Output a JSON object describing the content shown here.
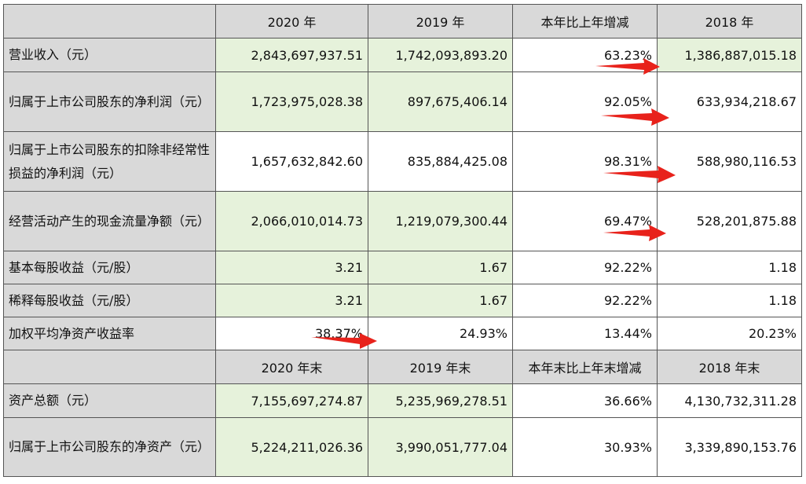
{
  "header1": [
    "2020 年",
    "2019 年",
    "本年比上年增减",
    "2018 年"
  ],
  "header2": [
    "2020 年末",
    "2019 年末",
    "本年末比上年末增减",
    "2018 年末"
  ],
  "rows": [
    {
      "label": "营业收入（元）",
      "v2020": "2,843,697,937.51",
      "v2019": "1,742,093,893.20",
      "change": "63.23%",
      "v2018": "1,386,887,015.18"
    },
    {
      "label": "归属于上市公司股东的净利润（元）",
      "v2020": "1,723,975,028.38",
      "v2019": "897,675,406.14",
      "change": "92.05%",
      "v2018": "633,934,218.67"
    },
    {
      "label": "归属于上市公司股东的扣除非经常性损益的净利润（元）",
      "v2020": "1,657,632,842.60",
      "v2019": "835,884,425.08",
      "change": "98.31%",
      "v2018": "588,980,116.53"
    },
    {
      "label": "经营活动产生的现金流量净额（元）",
      "v2020": "2,066,010,014.73",
      "v2019": "1,219,079,300.44",
      "change": "69.47%",
      "v2018": "528,201,875.88"
    },
    {
      "label": "基本每股收益（元/股）",
      "v2020": "3.21",
      "v2019": "1.67",
      "change": "92.22%",
      "v2018": "1.18"
    },
    {
      "label": "稀释每股收益（元/股）",
      "v2020": "3.21",
      "v2019": "1.67",
      "change": "92.22%",
      "v2018": "1.18"
    },
    {
      "label": "加权平均净资产收益率",
      "v2020": "38.37%",
      "v2019": "24.93%",
      "change": "13.44%",
      "v2018": "20.23%"
    }
  ],
  "rows2": [
    {
      "label": "资产总额（元）",
      "v2020": "7,155,697,274.87",
      "v2019": "5,235,969,278.51",
      "change": "36.66%",
      "v2018": "4,130,732,311.28"
    },
    {
      "label": "归属于上市公司股东的净资产（元）",
      "v2020": "5,224,211,026.36",
      "v2019": "3,990,051,777.04",
      "change": "30.93%",
      "v2018": "3,339,890,153.76"
    }
  ],
  "colors": {
    "green_cell": "#e6f2db",
    "gray_cell": "#d9d9d9",
    "arrow": "#e8221b"
  }
}
